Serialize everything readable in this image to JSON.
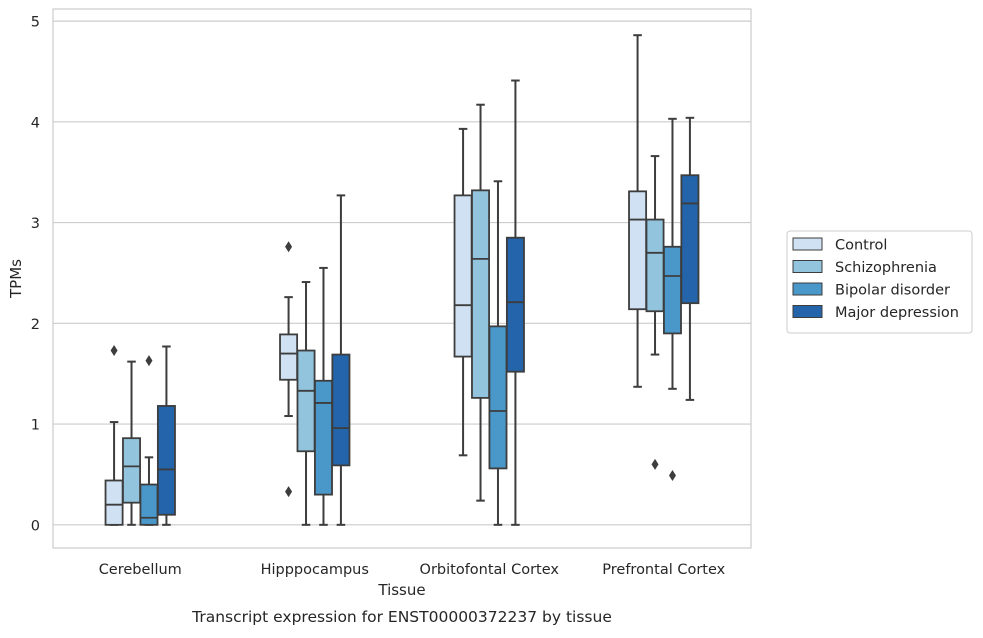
{
  "chart_data": {
    "type": "box",
    "caption": "Transcript expression for ENST00000372237 by tissue",
    "xlabel": "Tissue",
    "ylabel": "TPMs",
    "ylim": [
      -0.23,
      5.12
    ],
    "yticks": [
      0,
      1,
      2,
      3,
      4,
      5
    ],
    "grid": "horizontal",
    "legend_position": "right",
    "categories": [
      "Cerebellum",
      "Hipppocampus",
      "Orbitofontal Cortex",
      "Prefrontal Cortex"
    ],
    "series": [
      {
        "name": "Control",
        "color": "#cfe1f2",
        "boxes": [
          {
            "whisker_low": 0,
            "q1": 0,
            "median": 0.2,
            "q3": 0.44,
            "whisker_high": 1.02,
            "outliers": [
              1.73
            ]
          },
          {
            "whisker_low": 1.08,
            "q1": 1.44,
            "median": 1.7,
            "q3": 1.89,
            "whisker_high": 2.26,
            "outliers": [
              2.76,
              0.33
            ]
          },
          {
            "whisker_low": 0.69,
            "q1": 1.67,
            "median": 2.18,
            "q3": 3.27,
            "whisker_high": 3.93,
            "outliers": []
          },
          {
            "whisker_low": 1.37,
            "q1": 2.14,
            "median": 3.03,
            "q3": 3.31,
            "whisker_high": 4.86,
            "outliers": []
          }
        ]
      },
      {
        "name": "Schizophrenia",
        "color": "#93c4de",
        "boxes": [
          {
            "whisker_low": 0,
            "q1": 0.22,
            "median": 0.58,
            "q3": 0.86,
            "whisker_high": 1.62,
            "outliers": []
          },
          {
            "whisker_low": 0,
            "q1": 0.73,
            "median": 1.33,
            "q3": 1.73,
            "whisker_high": 2.41,
            "outliers": []
          },
          {
            "whisker_low": 0.24,
            "q1": 1.26,
            "median": 2.64,
            "q3": 3.32,
            "whisker_high": 4.17,
            "outliers": []
          },
          {
            "whisker_low": 1.69,
            "q1": 2.12,
            "median": 2.7,
            "q3": 3.03,
            "whisker_high": 3.66,
            "outliers": [
              0.6
            ]
          }
        ]
      },
      {
        "name": "Bipolar disorder",
        "color": "#4a98c9",
        "boxes": [
          {
            "whisker_low": 0,
            "q1": 0,
            "median": 0.07,
            "q3": 0.4,
            "whisker_high": 0.67,
            "outliers": [
              1.63
            ]
          },
          {
            "whisker_low": 0,
            "q1": 0.3,
            "median": 1.21,
            "q3": 1.43,
            "whisker_high": 2.55,
            "outliers": []
          },
          {
            "whisker_low": 0,
            "q1": 0.56,
            "median": 1.13,
            "q3": 1.97,
            "whisker_high": 3.41,
            "outliers": []
          },
          {
            "whisker_low": 1.35,
            "q1": 1.9,
            "median": 2.47,
            "q3": 2.76,
            "whisker_high": 4.03,
            "outliers": [
              0.49
            ]
          }
        ]
      },
      {
        "name": "Major depression",
        "color": "#2364aa",
        "boxes": [
          {
            "whisker_low": 0,
            "q1": 0.1,
            "median": 0.55,
            "q3": 1.18,
            "whisker_high": 1.77,
            "outliers": []
          },
          {
            "whisker_low": 0,
            "q1": 0.59,
            "median": 0.96,
            "q3": 1.69,
            "whisker_high": 3.27,
            "outliers": []
          },
          {
            "whisker_low": 0,
            "q1": 1.52,
            "median": 2.21,
            "q3": 2.85,
            "whisker_high": 4.41,
            "outliers": []
          },
          {
            "whisker_low": 1.24,
            "q1": 2.2,
            "median": 3.19,
            "q3": 3.47,
            "whisker_high": 4.04,
            "outliers": []
          }
        ]
      }
    ]
  }
}
